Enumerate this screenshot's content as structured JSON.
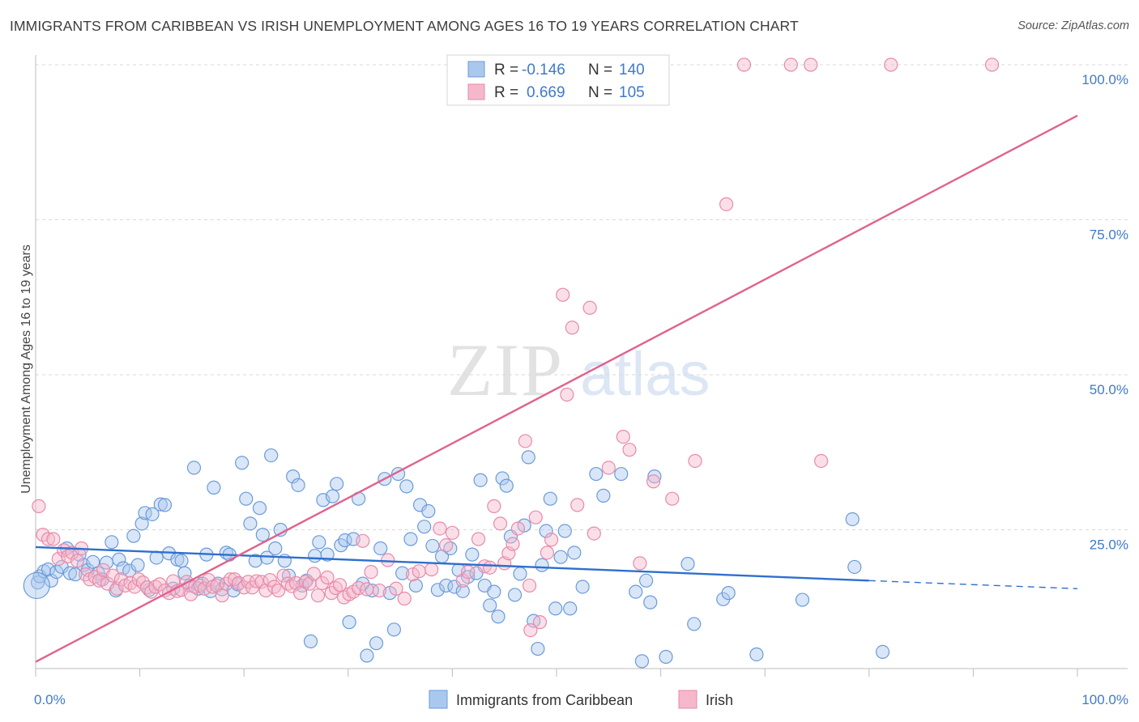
{
  "title": "IMMIGRANTS FROM CARIBBEAN VS IRISH UNEMPLOYMENT AMONG AGES 16 TO 19 YEARS CORRELATION CHART",
  "source": "Source: ZipAtlas.com",
  "watermark": {
    "zip": "ZIP",
    "atlas": "atlas"
  },
  "colors": {
    "blue_fill": "#aac8ee",
    "blue_stroke": "#6a9bd9",
    "blue_line": "#2e6fcf",
    "pink_fill": "#f5b8cb",
    "pink_stroke": "#e88aa8",
    "pink_line": "#e0628e",
    "tick_label": "#3f7ac9",
    "grid": "#d9d9d9"
  },
  "legend_box": {
    "rows": [
      {
        "r_label": "R =",
        "r_value": "-0.146",
        "n_label": "N =",
        "n_value": "140"
      },
      {
        "r_label": "R =",
        "r_value": "0.669",
        "n_label": "N =",
        "n_value": "105"
      }
    ]
  },
  "chart_data": {
    "type": "scatter",
    "title": "IMMIGRANTS FROM CARIBBEAN VS IRISH UNEMPLOYMENT AMONG AGES 16 TO 19 YEARS CORRELATION CHART",
    "xlabel": "",
    "ylabel": "Unemployment Among Ages 16 to 19 years",
    "xlim": [
      0,
      100
    ],
    "ylim": [
      0,
      100
    ],
    "x_tick_labels": [
      "0.0%",
      "100.0%"
    ],
    "y_ticks": [
      25,
      50,
      75,
      100
    ],
    "y_tick_labels": [
      "25.0%",
      "50.0%",
      "75.0%",
      "100.0%"
    ],
    "grid": true,
    "legend_position": "bottom-center",
    "series": [
      {
        "name": "Immigrants from Caribbean",
        "r": -0.146,
        "n": 140,
        "trend": {
          "x0": 0,
          "y0": 22.2,
          "x1": 80,
          "y1": 16.8,
          "dashed_to_x": 100,
          "dashed_to_y": 15.5
        },
        "points": [
          [
            0.2,
            16.5
          ],
          [
            0.4,
            17.5
          ],
          [
            0.8,
            18.3
          ],
          [
            1.2,
            18.6
          ],
          [
            1.5,
            16.8
          ],
          [
            2,
            18.2
          ],
          [
            2.5,
            19
          ],
          [
            3,
            22
          ],
          [
            3.3,
            18
          ],
          [
            3.8,
            17.8
          ],
          [
            4.2,
            21
          ],
          [
            4.6,
            19.3
          ],
          [
            5,
            18.5
          ],
          [
            5.5,
            19.8
          ],
          [
            6,
            18
          ],
          [
            6.4,
            17
          ],
          [
            6.8,
            19.7
          ],
          [
            7.3,
            23
          ],
          [
            7.7,
            15.2
          ],
          [
            8,
            20.2
          ],
          [
            8.4,
            18.8
          ],
          [
            9,
            18.4
          ],
          [
            9.4,
            24
          ],
          [
            9.8,
            19.3
          ],
          [
            10.2,
            26
          ],
          [
            10.5,
            27.7
          ],
          [
            10.9,
            15.3
          ],
          [
            11.2,
            27.5
          ],
          [
            11.6,
            20.5
          ],
          [
            12,
            29.1
          ],
          [
            12.4,
            29
          ],
          [
            12.8,
            21.2
          ],
          [
            13.2,
            15.5
          ],
          [
            13.6,
            20.2
          ],
          [
            14,
            20
          ],
          [
            14.3,
            18
          ],
          [
            14.8,
            16
          ],
          [
            15.2,
            35
          ],
          [
            15.6,
            15.5
          ],
          [
            16,
            16.3
          ],
          [
            16.4,
            21
          ],
          [
            16.8,
            15.1
          ],
          [
            17.1,
            31.8
          ],
          [
            17.5,
            16.3
          ],
          [
            17.9,
            15.4
          ],
          [
            18.3,
            21.3
          ],
          [
            18.6,
            21
          ],
          [
            19,
            15.2
          ],
          [
            19.4,
            16.2
          ],
          [
            19.8,
            35.8
          ],
          [
            20.2,
            30
          ],
          [
            20.6,
            26
          ],
          [
            21.1,
            20
          ],
          [
            21.5,
            28.5
          ],
          [
            21.8,
            24.2
          ],
          [
            22.2,
            20.5
          ],
          [
            22.6,
            37
          ],
          [
            23,
            22
          ],
          [
            23.5,
            25
          ],
          [
            23.9,
            20
          ],
          [
            24.3,
            17.6
          ],
          [
            24.7,
            33.6
          ],
          [
            25.2,
            32.2
          ],
          [
            25.6,
            16
          ],
          [
            26,
            16.8
          ],
          [
            26.4,
            7
          ],
          [
            26.8,
            20.8
          ],
          [
            27.2,
            23
          ],
          [
            27.6,
            29.8
          ],
          [
            28,
            21
          ],
          [
            28.5,
            30.4
          ],
          [
            28.9,
            32.4
          ],
          [
            29.3,
            22.5
          ],
          [
            29.7,
            23.3
          ],
          [
            30.1,
            10.1
          ],
          [
            30.5,
            23.5
          ],
          [
            31,
            30
          ],
          [
            31.4,
            16.3
          ],
          [
            31.8,
            4.7
          ],
          [
            32.3,
            15.2
          ],
          [
            32.7,
            6.7
          ],
          [
            33.1,
            22
          ],
          [
            33.5,
            33.2
          ],
          [
            34,
            14.8
          ],
          [
            34.4,
            8.9
          ],
          [
            34.8,
            34
          ],
          [
            35.2,
            18
          ],
          [
            35.6,
            32
          ],
          [
            36,
            23.5
          ],
          [
            36.5,
            16
          ],
          [
            36.9,
            29
          ],
          [
            37.3,
            25.5
          ],
          [
            37.7,
            28
          ],
          [
            38.1,
            22.4
          ],
          [
            38.6,
            15.3
          ],
          [
            39,
            20.7
          ],
          [
            39.4,
            16
          ],
          [
            39.8,
            22
          ],
          [
            40.2,
            15.8
          ],
          [
            40.6,
            18.5
          ],
          [
            41,
            15.1
          ],
          [
            41.5,
            17.4
          ],
          [
            41.9,
            21
          ],
          [
            42.3,
            18
          ],
          [
            42.7,
            33
          ],
          [
            43.1,
            16
          ],
          [
            43.6,
            12.8
          ],
          [
            44,
            15
          ],
          [
            44.4,
            11
          ],
          [
            44.8,
            33.3
          ],
          [
            45.2,
            32.1
          ],
          [
            45.6,
            23.9
          ],
          [
            46,
            14.5
          ],
          [
            46.5,
            17.9
          ],
          [
            46.9,
            25.7
          ],
          [
            47.3,
            36.7
          ],
          [
            47.8,
            10.3
          ],
          [
            48.2,
            5.8
          ],
          [
            48.6,
            19.3
          ],
          [
            49,
            24.8
          ],
          [
            49.4,
            30
          ],
          [
            49.9,
            12.3
          ],
          [
            50.4,
            20.6
          ],
          [
            50.8,
            24.8
          ],
          [
            51.3,
            12.3
          ],
          [
            51.7,
            21.3
          ],
          [
            52.5,
            15.8
          ],
          [
            53.8,
            34
          ],
          [
            54.5,
            30.5
          ],
          [
            56.2,
            34
          ],
          [
            57.6,
            15
          ],
          [
            58.2,
            3.8
          ],
          [
            58.6,
            16.8
          ],
          [
            59,
            13.3
          ],
          [
            59.4,
            33.6
          ],
          [
            60.5,
            4.5
          ],
          [
            62.6,
            19.5
          ],
          [
            63.2,
            9.8
          ],
          [
            66,
            13.8
          ],
          [
            66.5,
            14.8
          ],
          [
            69.2,
            4.9
          ],
          [
            73.6,
            13.7
          ],
          [
            78.4,
            26.7
          ],
          [
            78.6,
            19
          ],
          [
            81.3,
            5.3
          ]
        ]
      },
      {
        "name": "Irish",
        "r": 0.669,
        "n": 105,
        "trend": {
          "x0": 0,
          "y0": 3.7,
          "x1": 100,
          "y1": 91.8
        },
        "points": [
          [
            0.3,
            28.8
          ],
          [
            0.7,
            24.2
          ],
          [
            1.2,
            23.5
          ],
          [
            1.7,
            23.5
          ],
          [
            2.2,
            20.3
          ],
          [
            2.7,
            21.7
          ],
          [
            3.1,
            20.7
          ],
          [
            3.5,
            21.3
          ],
          [
            4,
            20
          ],
          [
            4.4,
            22
          ],
          [
            4.8,
            17.8
          ],
          [
            5.2,
            17
          ],
          [
            5.7,
            17.4
          ],
          [
            6.1,
            16.8
          ],
          [
            6.5,
            18.5
          ],
          [
            6.9,
            16.3
          ],
          [
            7.4,
            17.6
          ],
          [
            7.8,
            15.5
          ],
          [
            8.2,
            17
          ],
          [
            8.6,
            16
          ],
          [
            9.1,
            16.4
          ],
          [
            9.5,
            15.8
          ],
          [
            9.9,
            17
          ],
          [
            10.3,
            16.5
          ],
          [
            10.7,
            15.7
          ],
          [
            11.1,
            15
          ],
          [
            11.5,
            15.8
          ],
          [
            11.9,
            16.2
          ],
          [
            12.4,
            15.2
          ],
          [
            12.8,
            14.8
          ],
          [
            13.2,
            16.7
          ],
          [
            13.6,
            15.1
          ],
          [
            14,
            15.3
          ],
          [
            14.5,
            16.6
          ],
          [
            14.9,
            14.6
          ],
          [
            15.3,
            15.8
          ],
          [
            15.8,
            16
          ],
          [
            16.2,
            15.5
          ],
          [
            16.6,
            16.9
          ],
          [
            17,
            15.8
          ],
          [
            17.4,
            16
          ],
          [
            17.9,
            14.4
          ],
          [
            18.3,
            16.3
          ],
          [
            18.7,
            17
          ],
          [
            19.1,
            17
          ],
          [
            19.5,
            16.4
          ],
          [
            20,
            15.7
          ],
          [
            20.4,
            16.6
          ],
          [
            20.8,
            15.7
          ],
          [
            21.2,
            16.7
          ],
          [
            21.7,
            16.6
          ],
          [
            22.1,
            15.2
          ],
          [
            22.5,
            16.9
          ],
          [
            22.9,
            15.8
          ],
          [
            23.3,
            15.2
          ],
          [
            23.8,
            17.6
          ],
          [
            24.2,
            16.3
          ],
          [
            24.6,
            15.9
          ],
          [
            25,
            16.4
          ],
          [
            25.4,
            14.8
          ],
          [
            25.9,
            16.6
          ],
          [
            26.3,
            16.3
          ],
          [
            26.7,
            17.9
          ],
          [
            27.1,
            14.4
          ],
          [
            27.5,
            16.4
          ],
          [
            28,
            17.3
          ],
          [
            28.4,
            14.8
          ],
          [
            28.8,
            15.6
          ],
          [
            29.2,
            16.1
          ],
          [
            29.6,
            14.1
          ],
          [
            30.1,
            14.6
          ],
          [
            30.5,
            15
          ],
          [
            31,
            15.6
          ],
          [
            31.4,
            23.2
          ],
          [
            31.8,
            15.4
          ],
          [
            32.2,
            18.2
          ],
          [
            33,
            15.2
          ],
          [
            33.8,
            20.1
          ],
          [
            34.6,
            15.5
          ],
          [
            35.4,
            13.9
          ],
          [
            36.2,
            17.8
          ],
          [
            36.8,
            18.3
          ],
          [
            38,
            18.6
          ],
          [
            38.8,
            25.2
          ],
          [
            39.4,
            22.5
          ],
          [
            40,
            24.5
          ],
          [
            41,
            16.8
          ],
          [
            41.5,
            18.2
          ],
          [
            42.5,
            23.5
          ],
          [
            43.1,
            19.1
          ],
          [
            43.6,
            18.9
          ],
          [
            44,
            28.8
          ],
          [
            44.6,
            26
          ],
          [
            45,
            19.6
          ],
          [
            45.4,
            21.2
          ],
          [
            45.8,
            22.7
          ],
          [
            46.3,
            25.2
          ],
          [
            47,
            39.3
          ],
          [
            47.4,
            16
          ],
          [
            48,
            27
          ],
          [
            48.4,
            10.1
          ],
          [
            49.1,
            21.3
          ],
          [
            49.5,
            23.4
          ],
          [
            50.6,
            62.9
          ],
          [
            51,
            46.8
          ],
          [
            51.5,
            57.6
          ],
          [
            52,
            29
          ],
          [
            53.2,
            60.8
          ],
          [
            53.6,
            24.4
          ],
          [
            55,
            35
          ],
          [
            56.4,
            40
          ],
          [
            57,
            37.9
          ],
          [
            58,
            19.6
          ],
          [
            59.3,
            32.8
          ],
          [
            61.1,
            30
          ],
          [
            63.3,
            36.1
          ],
          [
            66.3,
            77.5
          ],
          [
            68,
            100
          ],
          [
            72.5,
            100
          ],
          [
            74.4,
            100
          ],
          [
            75.4,
            36.1
          ],
          [
            82.1,
            100
          ],
          [
            91.8,
            100
          ],
          [
            47.5,
            8.8
          ],
          [
            49.5,
            100
          ],
          [
            56.1,
            100
          ]
        ]
      }
    ]
  }
}
